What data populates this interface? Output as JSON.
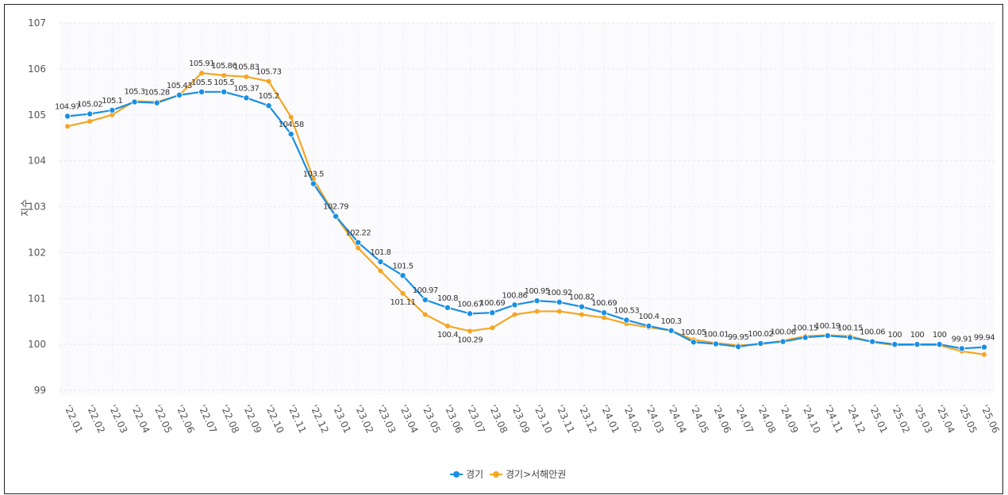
{
  "chart_data": {
    "type": "line",
    "ylabel": "지수",
    "ylim": [
      99,
      107
    ],
    "yticks": [
      99,
      100,
      101,
      102,
      103,
      104,
      105,
      106,
      107
    ],
    "grid": true,
    "legend_position": "bottom-center",
    "categories": [
      "'22.01",
      "'22.02",
      "'22.03",
      "'22.04",
      "'22.05",
      "'22.06",
      "'22.07",
      "'22.08",
      "'22.09",
      "'22.10",
      "'22.11",
      "'22.12",
      "'23.01",
      "'23.02",
      "'23.03",
      "'23.04",
      "'23.05",
      "'23.06",
      "'23.07",
      "'23.08",
      "'23.09",
      "'23.10",
      "'23.11",
      "'23.12",
      "'24.01",
      "'24.02",
      "'24.03",
      "'24.04",
      "'24.05",
      "'24.06",
      "'24.07",
      "'24.08",
      "'24.09",
      "'24.10",
      "'24.11",
      "'24.12",
      "'25.01",
      "'25.02",
      "'25.03",
      "'25.04",
      "'25.05",
      "'25.06"
    ],
    "series": [
      {
        "name": "경기",
        "color": "#1a8fe3",
        "marker": "diamond",
        "values": [
          104.97,
          105.02,
          105.1,
          105.28,
          105.26,
          105.43,
          105.5,
          105.5,
          105.37,
          105.2,
          104.58,
          103.5,
          102.79,
          102.22,
          101.8,
          101.5,
          100.97,
          100.8,
          100.67,
          100.69,
          100.86,
          100.95,
          100.92,
          100.82,
          100.69,
          100.53,
          100.4,
          100.3,
          100.05,
          100.01,
          99.95,
          100.02,
          100.06,
          100.15,
          100.19,
          100.15,
          100.06,
          100,
          100,
          100,
          99.91,
          99.94
        ],
        "labels": [
          "104.97",
          "105.02",
          "105.1",
          "",
          "",
          "",
          "105.5",
          "105.5",
          "105.37",
          "105.2",
          "104.58",
          "103.5",
          "",
          "102.22",
          "101.8",
          "101.5",
          "100.97",
          "100.8",
          "100.67",
          "100.69",
          "100.86",
          "100.95",
          "100.92",
          "100.82",
          "100.69",
          "100.53",
          "100.4",
          "100.3",
          "100.05",
          "100.01",
          "99.95",
          "100.02",
          "100.06",
          "100.15",
          "100.19",
          "100.15",
          "100.06",
          "100",
          "100",
          "100",
          "99.91",
          "99.94"
        ]
      },
      {
        "name": "경기>서해안권",
        "color": "#f5a623",
        "marker": "cross",
        "values": [
          104.75,
          104.86,
          105.0,
          105.3,
          105.28,
          105.43,
          105.91,
          105.86,
          105.83,
          105.73,
          104.95,
          103.6,
          102.79,
          102.1,
          101.6,
          101.11,
          100.65,
          100.4,
          100.29,
          100.36,
          100.65,
          100.72,
          100.72,
          100.65,
          100.58,
          100.45,
          100.37,
          100.3,
          100.1,
          100.03,
          99.98,
          100.0,
          100.08,
          100.18,
          100.2,
          100.18,
          100.05,
          99.98,
          99.99,
          99.98,
          99.85,
          99.78
        ],
        "labels": [
          "",
          "",
          "",
          "105.3",
          "105.28",
          "105.43",
          "105.91",
          "105.86",
          "105.83",
          "105.73",
          "",
          "",
          "102.79",
          "",
          "",
          "101.11",
          "",
          "100.4",
          "100.29",
          "",
          "",
          "",
          "",
          "",
          "",
          "",
          "",
          "",
          "",
          "",
          "",
          "",
          "",
          "",
          "",
          "",
          "",
          "",
          "",
          "",
          "",
          ""
        ]
      }
    ]
  }
}
